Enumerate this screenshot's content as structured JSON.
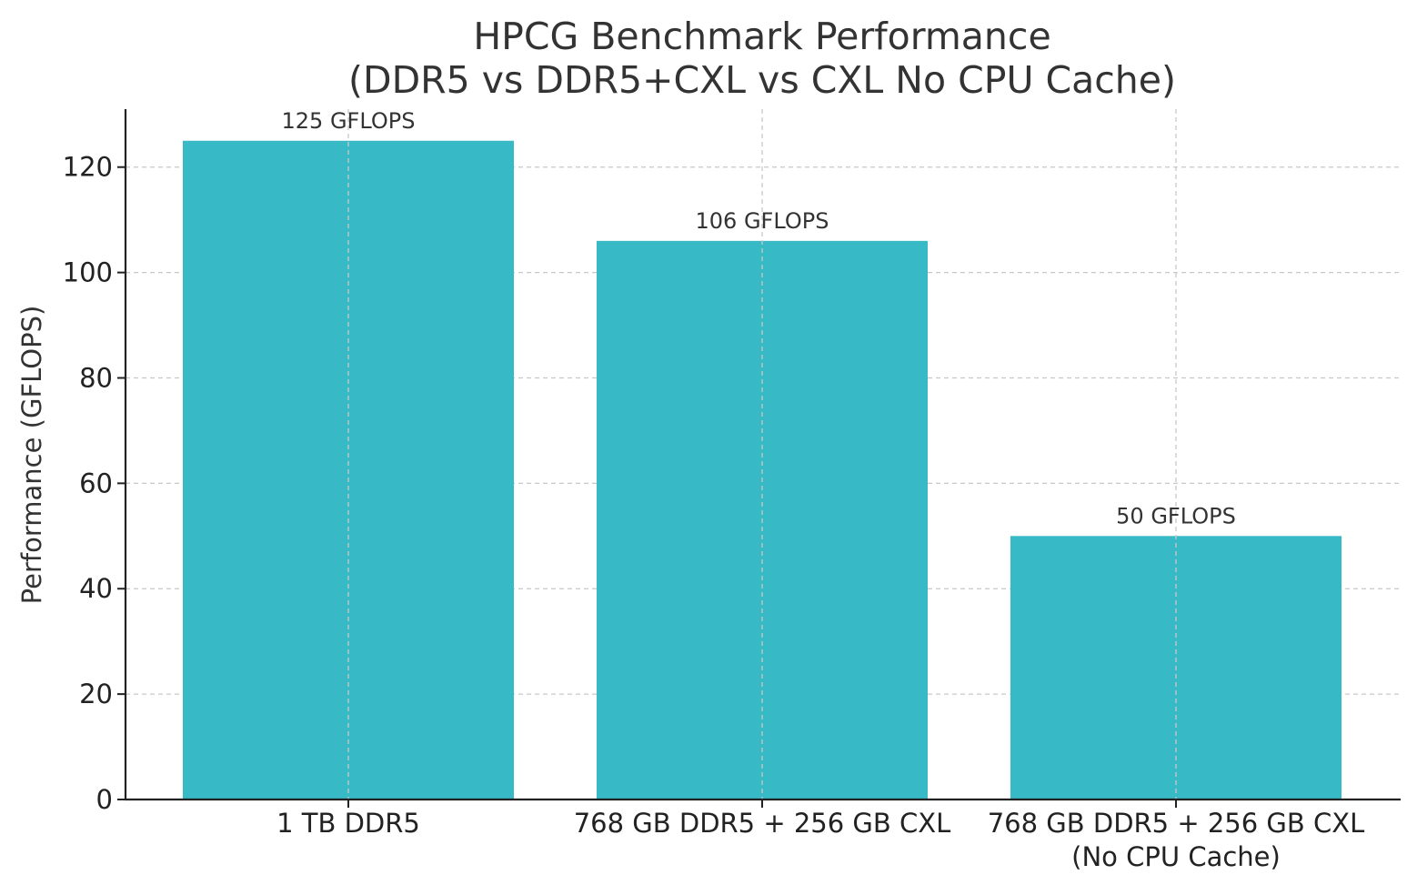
{
  "chart_data": {
    "type": "bar",
    "title": [
      "HPCG Benchmark Performance",
      "(DDR5 vs DDR5+CXL vs CXL No CPU Cache)"
    ],
    "xlabel": "",
    "ylabel": "Performance (GFLOPS)",
    "categories": [
      [
        "1 TB DDR5"
      ],
      [
        "768 GB DDR5 + 256 GB CXL"
      ],
      [
        "768 GB DDR5 + 256 GB CXL",
        "(No CPU Cache)"
      ]
    ],
    "values": [
      125,
      106,
      50
    ],
    "data_labels": [
      "125 GFLOPS",
      "106 GFLOPS",
      "50 GFLOPS"
    ],
    "ylim": [
      0,
      131
    ],
    "yticks": [
      0,
      20,
      40,
      60,
      80,
      100,
      120
    ],
    "grid": true,
    "bar_color": "#38bac6"
  }
}
